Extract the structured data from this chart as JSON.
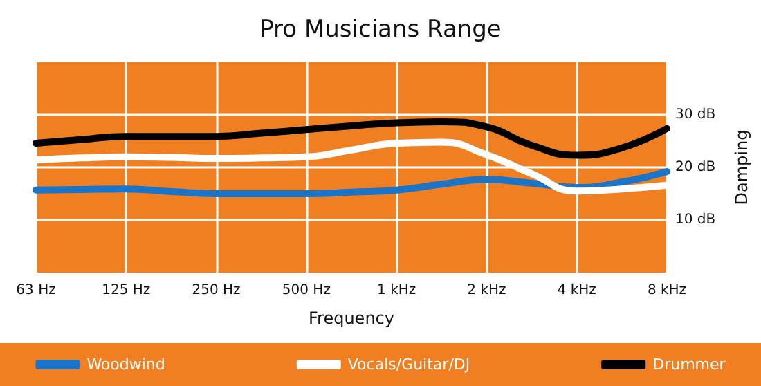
{
  "chart_data": {
    "type": "line",
    "title": "Pro Musicians Range",
    "xlabel": "Frequency",
    "ylabel": "Damping",
    "categories": [
      "63 Hz",
      null,
      "125 Hz",
      null,
      "250 Hz",
      null,
      "500 Hz",
      null,
      "1 kHz",
      null,
      "2 kHz",
      null,
      "4 kHz",
      null,
      "8 kHz"
    ],
    "ylim": [
      0,
      40
    ],
    "yticks": [
      {
        "value": 10,
        "label": "10 dB"
      },
      {
        "value": 20,
        "label": "20 dB"
      },
      {
        "value": 30,
        "label": "30 dB"
      }
    ],
    "series": [
      {
        "name": "Woodwind",
        "color": "#1a75c9",
        "values": [
          15.7,
          15.8,
          15.9,
          15.4,
          15.0,
          15.0,
          15.0,
          15.3,
          15.7,
          16.8,
          17.7,
          17.0,
          16.2,
          17.2,
          19.2
        ]
      },
      {
        "name": "Vocals/Guitar/DJ",
        "color": "#ffffff",
        "values": [
          21.4,
          21.8,
          22.0,
          21.9,
          21.7,
          21.8,
          22.0,
          23.3,
          24.6,
          24.8,
          22.4,
          18.8,
          15.5,
          15.9,
          16.6
        ]
      },
      {
        "name": "Drummer",
        "color": "#000000",
        "values": [
          24.6,
          25.3,
          25.9,
          25.9,
          25.9,
          26.5,
          27.2,
          27.9,
          28.5,
          28.7,
          27.7,
          24.2,
          22.3,
          23.7,
          27.4
        ]
      }
    ],
    "grid": true,
    "legend": "bottom",
    "marker": "none",
    "line_style": "solid"
  }
}
